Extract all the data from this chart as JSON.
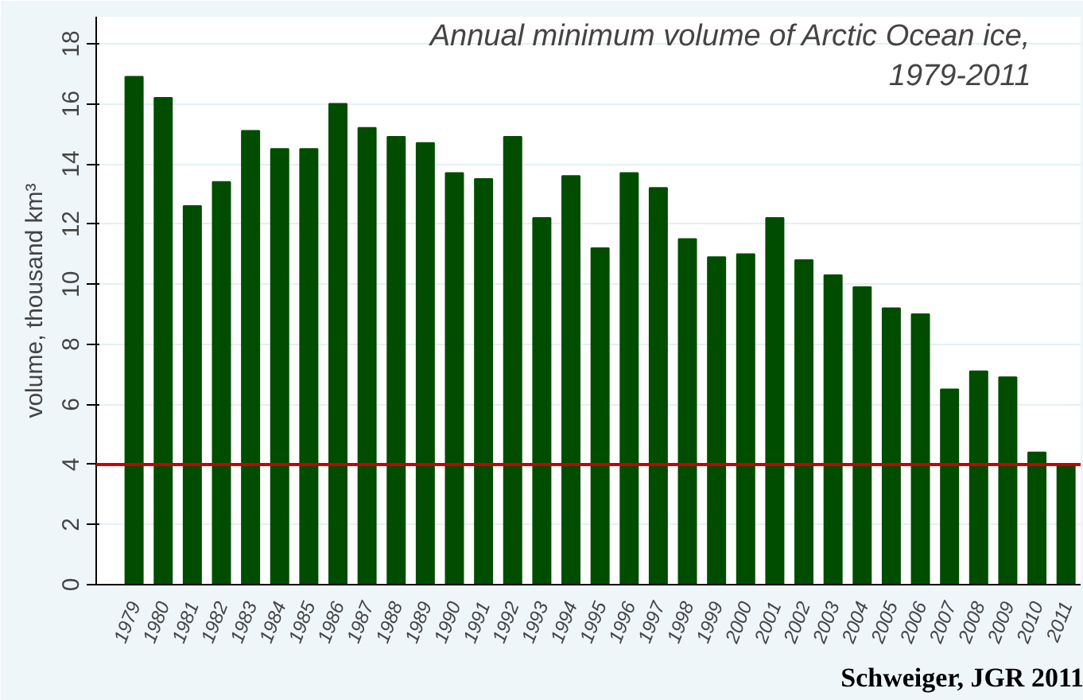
{
  "chart_data": {
    "type": "bar",
    "title": "Annual minimum volume of Arctic Ocean ice,\n1979-2011",
    "ylabel": "volume, thousand km³",
    "categories": [
      "1979",
      "1980",
      "1981",
      "1982",
      "1983",
      "1984",
      "1985",
      "1986",
      "1987",
      "1988",
      "1989",
      "1990",
      "1991",
      "1992",
      "1993",
      "1994",
      "1995",
      "1996",
      "1997",
      "1998",
      "1999",
      "2000",
      "2001",
      "2002",
      "2003",
      "2004",
      "2005",
      "2006",
      "2007",
      "2008",
      "2009",
      "2010",
      "2011"
    ],
    "values": [
      16.9,
      16.2,
      12.6,
      13.4,
      15.1,
      14.5,
      14.5,
      16.0,
      15.2,
      14.9,
      14.7,
      13.7,
      13.5,
      14.9,
      12.2,
      13.6,
      11.2,
      13.7,
      13.2,
      11.5,
      10.9,
      11.0,
      12.2,
      10.8,
      10.3,
      9.9,
      9.2,
      9.0,
      6.5,
      7.1,
      6.9,
      4.4,
      4.0
    ],
    "color": "#004d00",
    "ylim": [
      0,
      18.9
    ],
    "yticks": [
      0,
      2,
      4,
      6,
      8,
      10,
      12,
      14,
      16,
      18
    ],
    "grid": "y",
    "ref_lines": [
      {
        "axis": "y",
        "value": 4.0,
        "color": "#cc0000"
      }
    ],
    "annotations": [
      "Schweiger, JGR 2011"
    ]
  }
}
